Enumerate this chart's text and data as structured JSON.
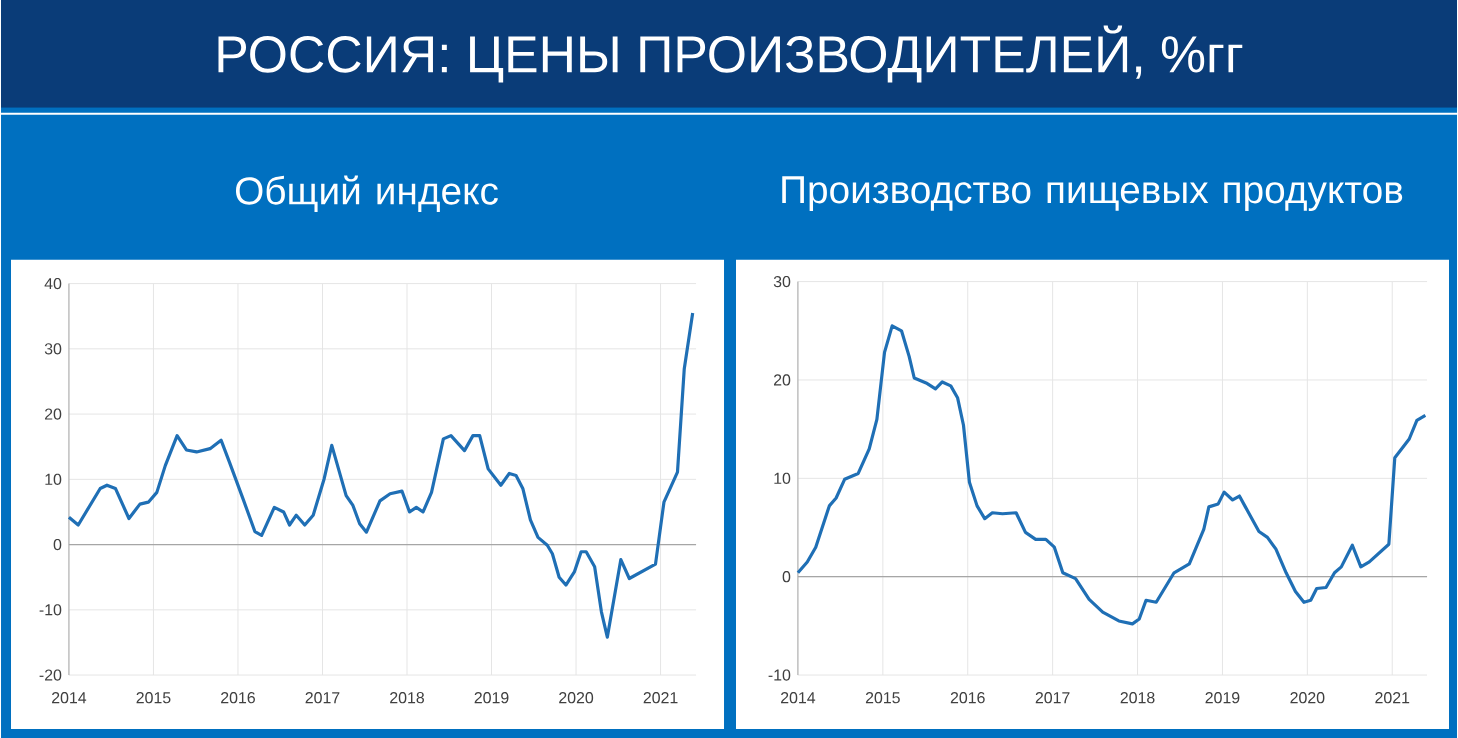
{
  "chart_data": [
    {
      "type": "line",
      "title": "Общий индекс",
      "annotations": [
        "РОССИЯ: ЦЕНЫ ПРОИЗВОДИТЕЛЕЙ, %гг"
      ],
      "series": [
        {
          "color": "#1f6fb5",
          "x": [
            2014.0,
            2014.11,
            2014.37,
            2014.45,
            2014.55,
            2014.71,
            2014.84,
            2014.94,
            2015.04,
            2015.14,
            2015.28,
            2015.39,
            2015.51,
            2015.67,
            2015.8,
            2015.9,
            2016.06,
            2016.2,
            2016.28,
            2016.43,
            2016.54,
            2016.61,
            2016.69,
            2016.79,
            2016.89,
            2017.02,
            2017.11,
            2017.28,
            2017.36,
            2017.44,
            2017.52,
            2017.68,
            2017.8,
            2017.94,
            2018.03,
            2018.11,
            2018.19,
            2018.29,
            2018.43,
            2018.52,
            2018.68,
            2018.78,
            2018.86,
            2018.96,
            2019.11,
            2019.21,
            2019.29,
            2019.37,
            2019.46,
            2019.55,
            2019.66,
            2019.72,
            2019.8,
            2019.88,
            2019.98,
            2020.06,
            2020.12,
            2020.22,
            2020.3,
            2020.37,
            2020.53,
            2020.63,
            2020.94,
            2021.04,
            2021.2,
            2021.28,
            2021.38
          ],
          "values": [
            4.2,
            3.0,
            8.6,
            9.1,
            8.6,
            4.0,
            6.2,
            6.5,
            8.0,
            12.1,
            16.7,
            14.5,
            14.2,
            14.7,
            16.0,
            12.6,
            7.0,
            2.0,
            1.4,
            5.7,
            5.0,
            3.0,
            4.5,
            3.0,
            4.5,
            10.1,
            15.2,
            7.5,
            6.0,
            3.2,
            1.9,
            6.7,
            7.8,
            8.2,
            5.0,
            5.7,
            5.0,
            8.0,
            16.2,
            16.7,
            14.4,
            16.7,
            16.7,
            11.6,
            9.1,
            10.9,
            10.6,
            8.6,
            3.8,
            1.1,
            -0.1,
            -1.4,
            -5.0,
            -6.2,
            -4.2,
            -1.1,
            -1.1,
            -3.4,
            -10.3,
            -14.2,
            -2.3,
            -5.2,
            -3.0,
            6.5,
            11.1,
            26.9,
            35.5
          ]
        }
      ],
      "xlim": [
        2014,
        2021.42
      ],
      "xticks": [
        2014,
        2015,
        2016,
        2017,
        2018,
        2019,
        2020,
        2021
      ],
      "ylim": [
        -20,
        40
      ],
      "yticks": [
        -20,
        -10,
        0,
        10,
        20,
        30,
        40
      ],
      "grid": true
    },
    {
      "type": "line",
      "title": "Производство пищевых продуктов",
      "series": [
        {
          "color": "#1f6fb5",
          "x": [
            2014.0,
            2014.11,
            2014.21,
            2014.37,
            2014.45,
            2014.55,
            2014.71,
            2014.84,
            2014.93,
            2015.02,
            2015.11,
            2015.22,
            2015.31,
            2015.37,
            2015.51,
            2015.62,
            2015.7,
            2015.8,
            2015.88,
            2015.95,
            2016.02,
            2016.11,
            2016.2,
            2016.29,
            2016.41,
            2016.57,
            2016.68,
            2016.8,
            2016.92,
            2017.02,
            2017.12,
            2017.27,
            2017.43,
            2017.59,
            2017.78,
            2017.94,
            2018.02,
            2018.1,
            2018.22,
            2018.43,
            2018.61,
            2018.78,
            2018.84,
            2018.95,
            2019.02,
            2019.12,
            2019.2,
            2019.27,
            2019.43,
            2019.53,
            2019.63,
            2019.75,
            2019.86,
            2019.96,
            2020.04,
            2020.11,
            2020.22,
            2020.32,
            2020.4,
            2020.53,
            2020.63,
            2020.73,
            2020.96,
            2021.03,
            2021.2,
            2021.29,
            2021.39
          ],
          "values": [
            0.4,
            1.5,
            3.0,
            7.2,
            8.0,
            9.9,
            10.5,
            13.0,
            16.0,
            22.8,
            25.5,
            25.0,
            22.4,
            20.2,
            19.7,
            19.1,
            19.8,
            19.4,
            18.2,
            15.4,
            9.6,
            7.2,
            5.9,
            6.5,
            6.4,
            6.5,
            4.5,
            3.8,
            3.8,
            3.0,
            0.4,
            -0.2,
            -2.3,
            -3.6,
            -4.5,
            -4.8,
            -4.3,
            -2.4,
            -2.6,
            0.4,
            1.3,
            4.8,
            7.1,
            7.4,
            8.6,
            7.8,
            8.2,
            7.1,
            4.6,
            4.0,
            2.8,
            0.4,
            -1.5,
            -2.6,
            -2.4,
            -1.2,
            -1.1,
            0.4,
            1.0,
            3.2,
            1.0,
            1.5,
            3.3,
            12.1,
            14.0,
            15.9,
            16.4
          ]
        }
      ],
      "xlim": [
        2014,
        2021.41
      ],
      "xticks": [
        2014,
        2015,
        2016,
        2017,
        2018,
        2019,
        2020,
        2021
      ],
      "ylim": [
        -10,
        30
      ],
      "yticks": [
        -10,
        0,
        10,
        20,
        30
      ],
      "grid": true
    }
  ]
}
